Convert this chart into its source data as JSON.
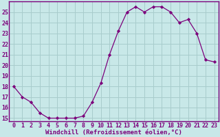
{
  "x": [
    0,
    1,
    2,
    3,
    4,
    5,
    6,
    7,
    8,
    9,
    10,
    11,
    12,
    13,
    14,
    15,
    16,
    17,
    18,
    19,
    20,
    21,
    22,
    23
  ],
  "y": [
    18.0,
    17.0,
    16.5,
    15.5,
    15.0,
    15.0,
    15.0,
    15.0,
    15.2,
    16.5,
    18.3,
    21.0,
    23.2,
    25.0,
    25.5,
    25.0,
    25.5,
    25.5,
    25.0,
    24.0,
    24.3,
    23.0,
    20.5,
    20.3
  ],
  "line_color": "#7b007b",
  "marker": "D",
  "marker_size": 2.2,
  "bg_color": "#c8e8e8",
  "grid_color": "#a8cccc",
  "xlabel": "Windchill (Refroidissement éolien,°C)",
  "ylim_min": 14.7,
  "ylim_max": 26.0,
  "xlim_min": -0.5,
  "xlim_max": 23.5,
  "yticks": [
    15,
    16,
    17,
    18,
    19,
    20,
    21,
    22,
    23,
    24,
    25
  ],
  "xticks": [
    0,
    1,
    2,
    3,
    4,
    5,
    6,
    7,
    8,
    9,
    10,
    11,
    12,
    13,
    14,
    15,
    16,
    17,
    18,
    19,
    20,
    21,
    22,
    23
  ],
  "xlabel_fontsize": 6.5,
  "tick_fontsize": 6.0,
  "spine_color": "#7b007b",
  "text_color": "#7b007b"
}
